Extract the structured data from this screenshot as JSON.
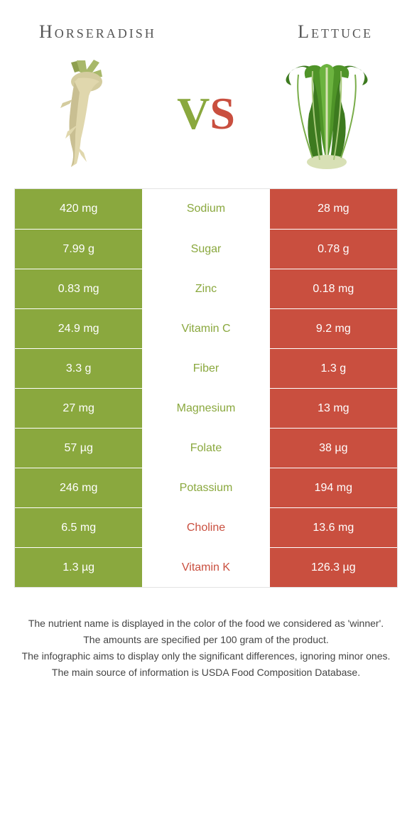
{
  "header": {
    "left_title": "Horseradish",
    "right_title": "Lettuce"
  },
  "vs": {
    "v": "V",
    "s": "S"
  },
  "colors": {
    "left_bg": "#8aa83e",
    "right_bg": "#c94f3f",
    "left_text": "#8aa83e",
    "right_text": "#c94f3f",
    "row_border": "#ffffff"
  },
  "typography": {
    "header_fontsize": 26,
    "cell_fontsize": 16,
    "vs_fontsize": 64,
    "footer_fontsize": 14
  },
  "table": {
    "type": "comparison-table",
    "rows": [
      {
        "nutrient": "Sodium",
        "left": "420 mg",
        "right": "28 mg",
        "winner": "left"
      },
      {
        "nutrient": "Sugar",
        "left": "7.99 g",
        "right": "0.78 g",
        "winner": "left"
      },
      {
        "nutrient": "Zinc",
        "left": "0.83 mg",
        "right": "0.18 mg",
        "winner": "left"
      },
      {
        "nutrient": "Vitamin C",
        "left": "24.9 mg",
        "right": "9.2 mg",
        "winner": "left"
      },
      {
        "nutrient": "Fiber",
        "left": "3.3 g",
        "right": "1.3 g",
        "winner": "left"
      },
      {
        "nutrient": "Magnesium",
        "left": "27 mg",
        "right": "13 mg",
        "winner": "left"
      },
      {
        "nutrient": "Folate",
        "left": "57 µg",
        "right": "38 µg",
        "winner": "left"
      },
      {
        "nutrient": "Potassium",
        "left": "246 mg",
        "right": "194 mg",
        "winner": "left"
      },
      {
        "nutrient": "Choline",
        "left": "6.5 mg",
        "right": "13.6 mg",
        "winner": "right"
      },
      {
        "nutrient": "Vitamin K",
        "left": "1.3 µg",
        "right": "126.3 µg",
        "winner": "right"
      }
    ]
  },
  "footer": {
    "line1": "The nutrient name is displayed in the color of the food we considered as 'winner'.",
    "line2": "The amounts are specified per 100 gram of the product.",
    "line3": "The infographic aims to display only the significant differences, ignoring minor ones.",
    "line4": "The main source of information is USDA Food Composition Database."
  }
}
